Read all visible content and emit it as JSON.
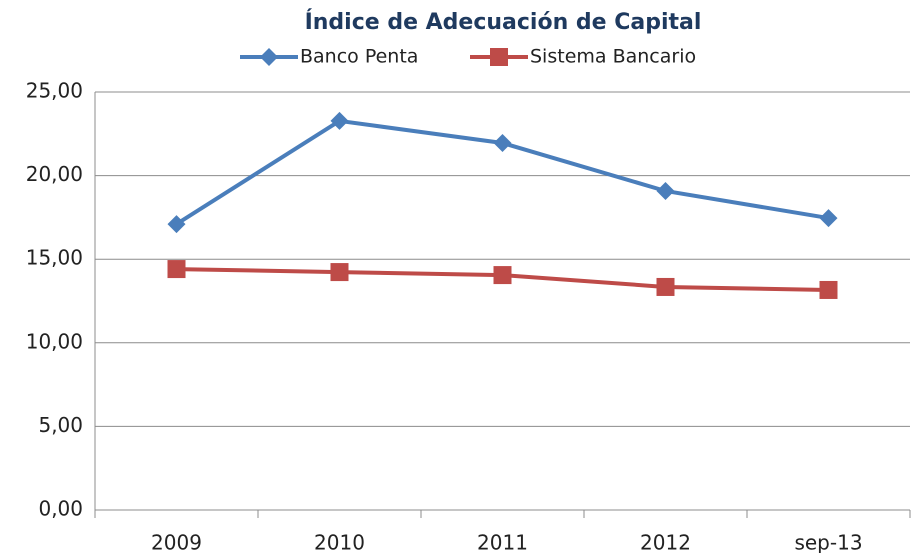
{
  "chart_data": {
    "type": "line",
    "title": "Índice de Adecuación de Capital",
    "categories": [
      "2009",
      "2010",
      "2011",
      "2012",
      "sep-13"
    ],
    "series": [
      {
        "name": "Banco Penta",
        "color": "#4a7ebb",
        "marker": "diamond",
        "values": [
          17.1,
          23.27,
          21.95,
          19.08,
          17.46
        ]
      },
      {
        "name": "Sistema Bancario",
        "color": "#be4b48",
        "marker": "square",
        "values": [
          14.41,
          14.23,
          14.05,
          13.34,
          13.16
        ]
      }
    ],
    "ylim": [
      0,
      25
    ],
    "yticks": [
      {
        "value": 0,
        "label": "0,00"
      },
      {
        "value": 5,
        "label": "5,00"
      },
      {
        "value": 10,
        "label": "10,00"
      },
      {
        "value": 15,
        "label": "15,00"
      },
      {
        "value": 20,
        "label": "20,00"
      },
      {
        "value": 25,
        "label": "25,00"
      }
    ],
    "grid": true,
    "legend": "top"
  }
}
